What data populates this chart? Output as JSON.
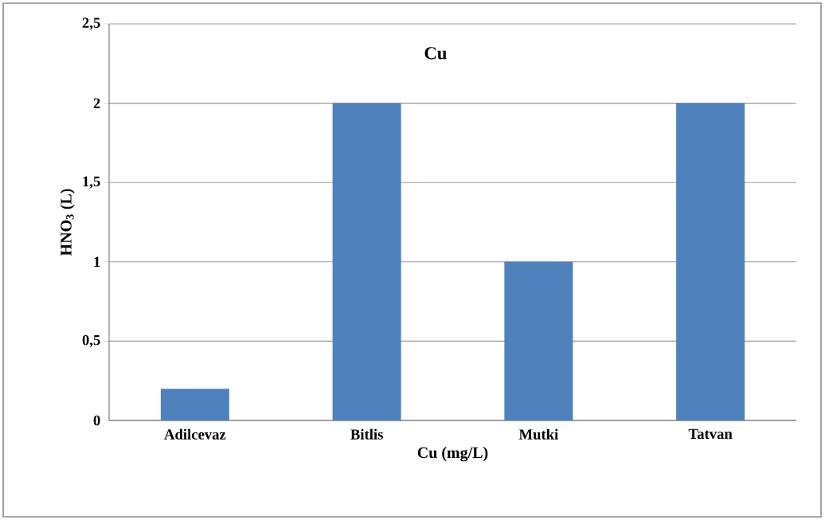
{
  "chart_data": {
    "type": "bar",
    "title": "Cu",
    "xlabel": "Cu (mg/L)",
    "ylabel": "HNO$_{3}$ (L)",
    "categories": [
      "Adilcevaz",
      "Bitlis",
      "Mutki",
      "Tatvan"
    ],
    "values": [
      0.2,
      2,
      1,
      2
    ],
    "color": "#4f81bd",
    "ylim": [
      0,
      2.5
    ],
    "yticks": [
      0,
      {
        "value": 0.5,
        "label": "0,5"
      },
      1,
      {
        "value": 1.5,
        "label": "1,5"
      },
      2,
      {
        "value": 2.5,
        "label": "2,5"
      }
    ],
    "grid": "y"
  }
}
